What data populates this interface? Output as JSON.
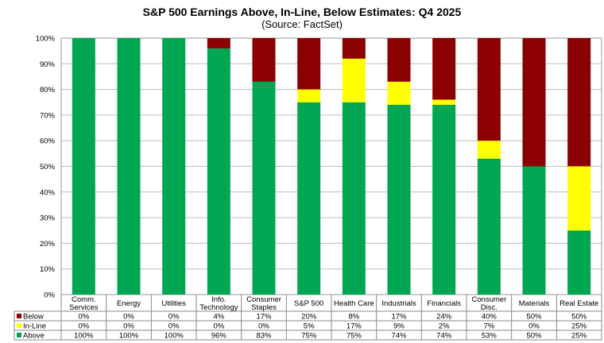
{
  "title": "S&P 500 Earnings Above, In-Line, Below Estimates: Q4 2025",
  "subtitle": "(Source: FactSet)",
  "chart_data": {
    "type": "bar",
    "stacked": true,
    "ylim": [
      0,
      100
    ],
    "y_ticks": [
      "0%",
      "10%",
      "20%",
      "30%",
      "40%",
      "50%",
      "60%",
      "70%",
      "80%",
      "90%",
      "100%"
    ],
    "categories": [
      [
        "Comm.",
        "Services"
      ],
      [
        "Energy"
      ],
      [
        "Utilities"
      ],
      [
        "Info.",
        "Technology"
      ],
      [
        "Consumer",
        "Staples"
      ],
      [
        "S&P 500"
      ],
      [
        "Health Care"
      ],
      [
        "Industrials"
      ],
      [
        "Financials"
      ],
      [
        "Consumer",
        "Disc."
      ],
      [
        "Materials"
      ],
      [
        "Real Estate"
      ]
    ],
    "series": [
      {
        "name": "Above",
        "color": "#00A651",
        "values": [
          100,
          100,
          100,
          96,
          83,
          75,
          75,
          74,
          74,
          53,
          50,
          25
        ],
        "labels": [
          "100%",
          "100%",
          "100%",
          "96%",
          "83%",
          "75%",
          "75%",
          "74%",
          "74%",
          "53%",
          "50%",
          "25%"
        ]
      },
      {
        "name": "In-Line",
        "color": "#FFFF00",
        "values": [
          0,
          0,
          0,
          0,
          0,
          5,
          17,
          9,
          2,
          7,
          0,
          25
        ],
        "labels": [
          "0%",
          "0%",
          "0%",
          "0%",
          "0%",
          "5%",
          "17%",
          "9%",
          "2%",
          "7%",
          "0%",
          "25%"
        ]
      },
      {
        "name": "Below",
        "color": "#8B0000",
        "values": [
          0,
          0,
          0,
          4,
          17,
          20,
          8,
          17,
          24,
          40,
          50,
          50
        ],
        "labels": [
          "0%",
          "0%",
          "0%",
          "4%",
          "17%",
          "20%",
          "8%",
          "17%",
          "24%",
          "40%",
          "50%",
          "50%"
        ]
      }
    ],
    "table_row_order": [
      "Below",
      "In-Line",
      "Above"
    ],
    "grid": true,
    "legend": "table-left"
  }
}
